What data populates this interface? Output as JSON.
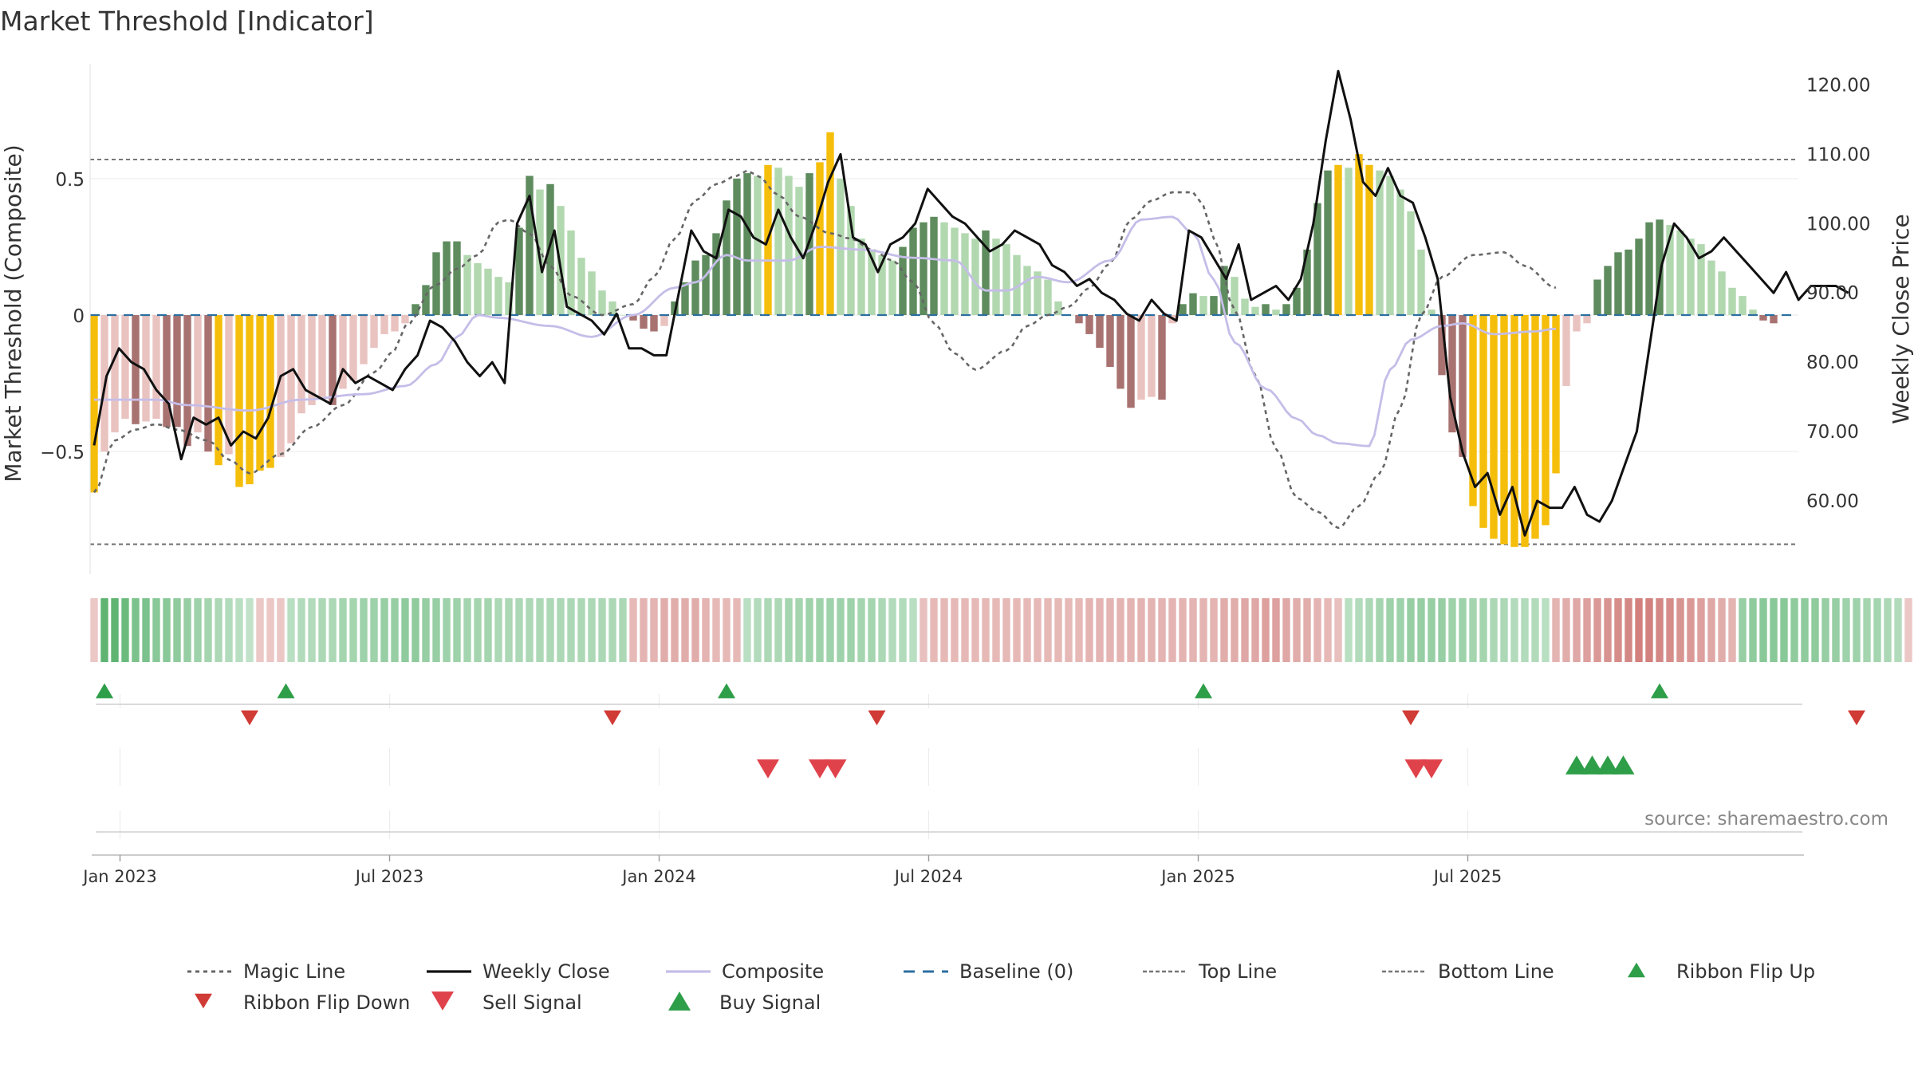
{
  "chart_data": {
    "type": "bar",
    "title": "Market Threshold [Indicator]",
    "source": "source: sharemaestro.com",
    "ylabel_left": "Market Threshold (Composite)",
    "ylabel_right": "Weekly Close Price",
    "ylim_left": [
      -0.95,
      0.95
    ],
    "ylim_right": [
      49.4,
      124.2
    ],
    "left_ticks": [
      {
        "value": 0.5,
        "label": "0.5"
      },
      {
        "value": 0,
        "label": "0"
      },
      {
        "value": -0.5,
        "label": "−0.5"
      }
    ],
    "right_ticks": [
      {
        "value": 60,
        "label": "60.00"
      },
      {
        "value": 70,
        "label": "70.00"
      },
      {
        "value": 80,
        "label": "80.00"
      },
      {
        "value": 90,
        "label": "90.00"
      },
      {
        "value": 100,
        "label": "100.00"
      },
      {
        "value": 110,
        "label": "110.00"
      },
      {
        "value": 120,
        "label": "120.00"
      }
    ],
    "x_ticks": [
      {
        "week": 2.5,
        "label": "Jan 2023"
      },
      {
        "week": 28.5,
        "label": "Jul 2023"
      },
      {
        "week": 54.5,
        "label": "Jan 2024"
      },
      {
        "week": 80.5,
        "label": "Jul 2024"
      },
      {
        "week": 106.5,
        "label": "Jan 2025"
      },
      {
        "week": 132.5,
        "label": "Jul 2025"
      }
    ],
    "grid": true,
    "threshold_top": 0.57,
    "threshold_bottom": -0.84,
    "weekly_close_key": [
      [
        0,
        68
      ],
      [
        1,
        78
      ],
      [
        2,
        82
      ],
      [
        3,
        80
      ],
      [
        4,
        79
      ],
      [
        5,
        76
      ],
      [
        6,
        74
      ],
      [
        7,
        66
      ],
      [
        8,
        72
      ],
      [
        9,
        71
      ],
      [
        10,
        72
      ],
      [
        11,
        68
      ],
      [
        12,
        70
      ],
      [
        13,
        69
      ],
      [
        14,
        72
      ],
      [
        15,
        78
      ],
      [
        16,
        79
      ],
      [
        17,
        76
      ],
      [
        18,
        75
      ],
      [
        19,
        74
      ],
      [
        20,
        79
      ],
      [
        21,
        77
      ],
      [
        22,
        78
      ],
      [
        23,
        77
      ],
      [
        24,
        76
      ],
      [
        25,
        79
      ],
      [
        26,
        81
      ],
      [
        27,
        86
      ],
      [
        28,
        85
      ],
      [
        29,
        83
      ],
      [
        30,
        80
      ],
      [
        31,
        78
      ],
      [
        32,
        80
      ],
      [
        33,
        77
      ],
      [
        34,
        100
      ],
      [
        35,
        104
      ],
      [
        36,
        93
      ],
      [
        37,
        99
      ],
      [
        38,
        88
      ],
      [
        39,
        87
      ],
      [
        40,
        86
      ],
      [
        41,
        84
      ],
      [
        42,
        87
      ],
      [
        43,
        82
      ],
      [
        44,
        82
      ],
      [
        45,
        81
      ],
      [
        46,
        81
      ],
      [
        47,
        90
      ],
      [
        48,
        99
      ],
      [
        49,
        96
      ],
      [
        50,
        95
      ],
      [
        51,
        102
      ],
      [
        52,
        101
      ],
      [
        53,
        98
      ],
      [
        54,
        97
      ],
      [
        55,
        102
      ],
      [
        56,
        98
      ],
      [
        57,
        95
      ],
      [
        58,
        100
      ],
      [
        59,
        106
      ],
      [
        60,
        110
      ],
      [
        61,
        98
      ],
      [
        62,
        97
      ],
      [
        63,
        93
      ],
      [
        64,
        97
      ],
      [
        65,
        98
      ],
      [
        66,
        100
      ],
      [
        67,
        105
      ],
      [
        68,
        103
      ],
      [
        69,
        101
      ],
      [
        70,
        100
      ],
      [
        71,
        98
      ],
      [
        72,
        96
      ],
      [
        73,
        97
      ],
      [
        74,
        99
      ],
      [
        75,
        98
      ],
      [
        76,
        97
      ],
      [
        77,
        94
      ],
      [
        78,
        93
      ],
      [
        79,
        91
      ],
      [
        80,
        92
      ],
      [
        81,
        90
      ],
      [
        82,
        89
      ],
      [
        83,
        87
      ],
      [
        84,
        86
      ],
      [
        85,
        89
      ],
      [
        86,
        87
      ],
      [
        87,
        86
      ],
      [
        88,
        99
      ],
      [
        89,
        98
      ],
      [
        90,
        95
      ],
      [
        91,
        92
      ],
      [
        92,
        97
      ],
      [
        93,
        89
      ],
      [
        94,
        90
      ],
      [
        95,
        91
      ],
      [
        96,
        89
      ],
      [
        97,
        92
      ],
      [
        98,
        100
      ],
      [
        99,
        112
      ],
      [
        100,
        122
      ],
      [
        101,
        115
      ],
      [
        102,
        106
      ],
      [
        103,
        104
      ],
      [
        104,
        108
      ],
      [
        105,
        104
      ],
      [
        106,
        103
      ],
      [
        107,
        98
      ],
      [
        108,
        92
      ],
      [
        109,
        75
      ],
      [
        110,
        67
      ],
      [
        111,
        62
      ],
      [
        112,
        64
      ],
      [
        113,
        58
      ],
      [
        114,
        62
      ],
      [
        115,
        55
      ],
      [
        116,
        60
      ],
      [
        117,
        59
      ],
      [
        118,
        59
      ],
      [
        119,
        62
      ],
      [
        120,
        58
      ],
      [
        121,
        57
      ],
      [
        122,
        60
      ],
      [
        123,
        65
      ],
      [
        124,
        70
      ],
      [
        125,
        82
      ],
      [
        126,
        94
      ],
      [
        127,
        100
      ],
      [
        128,
        98
      ],
      [
        129,
        95
      ],
      [
        130,
        96
      ],
      [
        131,
        98
      ],
      [
        132,
        96
      ],
      [
        133,
        94
      ],
      [
        134,
        92
      ],
      [
        135,
        90
      ],
      [
        136,
        93
      ],
      [
        137,
        89
      ],
      [
        138,
        91
      ],
      [
        139,
        91
      ],
      [
        140,
        91
      ],
      [
        141,
        90
      ]
    ],
    "composite_key": [
      [
        0,
        -0.31
      ],
      [
        6,
        -0.31
      ],
      [
        9,
        -0.33
      ],
      [
        15,
        -0.35
      ],
      [
        20,
        -0.31
      ],
      [
        26,
        -0.29
      ],
      [
        30,
        -0.26
      ],
      [
        33,
        -0.18
      ],
      [
        35,
        -0.08
      ],
      [
        37,
        0.0
      ],
      [
        39,
        -0.01
      ],
      [
        44,
        -0.04
      ],
      [
        48,
        -0.08
      ],
      [
        52,
        0.0
      ],
      [
        56,
        0.1
      ],
      [
        58,
        0.12
      ],
      [
        61,
        0.22
      ],
      [
        63,
        0.2
      ],
      [
        67,
        0.2
      ],
      [
        70,
        0.25
      ],
      [
        74,
        0.24
      ],
      [
        79,
        0.21
      ],
      [
        83,
        0.2
      ],
      [
        86,
        0.09
      ],
      [
        88,
        0.09
      ],
      [
        91,
        0.14
      ],
      [
        94,
        0.12
      ],
      [
        98,
        0.2
      ],
      [
        101,
        0.35
      ],
      [
        104,
        0.36
      ],
      [
        106,
        0.3
      ],
      [
        108,
        0.13
      ],
      [
        110,
        -0.1
      ],
      [
        113,
        -0.27
      ],
      [
        116,
        -0.38
      ],
      [
        118,
        -0.44
      ],
      [
        120,
        -0.47
      ],
      [
        123,
        -0.48
      ],
      [
        125,
        -0.2
      ],
      [
        127,
        -0.09
      ],
      [
        130,
        -0.04
      ],
      [
        132,
        -0.03
      ],
      [
        135,
        -0.07
      ],
      [
        139,
        -0.06
      ],
      [
        141,
        -0.05
      ]
    ],
    "magic_key": [
      [
        0,
        -0.65
      ],
      [
        2,
        -0.46
      ],
      [
        4,
        -0.42
      ],
      [
        6,
        -0.4
      ],
      [
        8,
        -0.42
      ],
      [
        11,
        -0.46
      ],
      [
        13,
        -0.53
      ],
      [
        15,
        -0.58
      ],
      [
        18,
        -0.51
      ],
      [
        21,
        -0.41
      ],
      [
        24,
        -0.33
      ],
      [
        27,
        -0.21
      ],
      [
        29,
        -0.13
      ],
      [
        30,
        -0.04
      ],
      [
        33,
        0.11
      ],
      [
        35,
        0.17
      ],
      [
        37,
        0.22
      ],
      [
        39,
        0.34
      ],
      [
        40,
        0.35
      ],
      [
        42,
        0.3
      ],
      [
        44,
        0.18
      ],
      [
        46,
        0.07
      ],
      [
        49,
        0.0
      ],
      [
        52,
        0.04
      ],
      [
        54,
        0.14
      ],
      [
        56,
        0.28
      ],
      [
        58,
        0.42
      ],
      [
        60,
        0.48
      ],
      [
        62,
        0.51
      ],
      [
        63,
        0.53
      ],
      [
        64,
        0.51
      ],
      [
        66,
        0.44
      ],
      [
        68,
        0.36
      ],
      [
        71,
        0.3
      ],
      [
        73,
        0.28
      ],
      [
        75,
        0.24
      ],
      [
        77,
        0.2
      ],
      [
        79,
        0.12
      ],
      [
        81,
        -0.03
      ],
      [
        83,
        -0.14
      ],
      [
        85,
        -0.2
      ],
      [
        88,
        -0.13
      ],
      [
        90,
        -0.04
      ],
      [
        92,
        0.0
      ],
      [
        94,
        0.03
      ],
      [
        96,
        0.1
      ],
      [
        98,
        0.19
      ],
      [
        100,
        0.35
      ],
      [
        102,
        0.42
      ],
      [
        104,
        0.45
      ],
      [
        106,
        0.45
      ],
      [
        107,
        0.4
      ],
      [
        108,
        0.28
      ],
      [
        110,
        0.02
      ],
      [
        112,
        -0.22
      ],
      [
        114,
        -0.49
      ],
      [
        116,
        -0.67
      ],
      [
        118,
        -0.72
      ],
      [
        120,
        -0.78
      ],
      [
        122,
        -0.7
      ],
      [
        124,
        -0.58
      ],
      [
        126,
        -0.34
      ],
      [
        128,
        0.0
      ],
      [
        130,
        0.14
      ],
      [
        133,
        0.22
      ],
      [
        136,
        0.23
      ],
      [
        138,
        0.18
      ],
      [
        141,
        0.1
      ]
    ],
    "histogram": [
      -0.65,
      -0.5,
      -0.43,
      -0.38,
      -0.4,
      -0.39,
      -0.38,
      -0.41,
      -0.41,
      -0.48,
      -0.43,
      -0.5,
      -0.55,
      -0.51,
      -0.63,
      -0.62,
      -0.57,
      -0.56,
      -0.52,
      -0.47,
      -0.36,
      -0.33,
      -0.3,
      -0.33,
      -0.27,
      -0.24,
      -0.18,
      -0.12,
      -0.07,
      -0.06,
      -0.03,
      0.04,
      0.11,
      0.23,
      0.27,
      0.27,
      0.22,
      0.19,
      0.17,
      0.14,
      0.12,
      0.32,
      0.51,
      0.46,
      0.48,
      0.4,
      0.31,
      0.21,
      0.16,
      0.09,
      0.05,
      0.0,
      -0.02,
      -0.05,
      -0.06,
      -0.04,
      0.05,
      0.12,
      0.2,
      0.22,
      0.3,
      0.42,
      0.5,
      0.52,
      0.51,
      0.55,
      0.54,
      0.51,
      0.47,
      0.52,
      0.56,
      0.67,
      0.5,
      0.4,
      0.28,
      0.24,
      0.22,
      0.2,
      0.25,
      0.32,
      0.34,
      0.36,
      0.34,
      0.32,
      0.3,
      0.28,
      0.31,
      0.28,
      0.26,
      0.22,
      0.18,
      0.16,
      0.13,
      0.05,
      0.0,
      -0.03,
      -0.07,
      -0.12,
      -0.19,
      -0.27,
      -0.34,
      -0.31,
      -0.3,
      -0.31,
      -0.03,
      0.04,
      0.08,
      0.07,
      0.07,
      0.18,
      0.14,
      0.06,
      0.03,
      0.04,
      0.02,
      0.04,
      0.1,
      0.24,
      0.41,
      0.53,
      0.55,
      0.54,
      0.59,
      0.55,
      0.53,
      0.51,
      0.46,
      0.38,
      0.24,
      0.02,
      -0.22,
      -0.43,
      -0.52,
      -0.7,
      -0.78,
      -0.82,
      -0.84,
      -0.85,
      -0.85,
      -0.82,
      -0.77,
      -0.58,
      -0.26,
      -0.06,
      -0.03,
      0.13,
      0.18,
      0.23,
      0.24,
      0.28,
      0.34,
      0.35,
      0.33,
      0.31,
      0.28,
      0.26,
      0.2,
      0.16,
      0.1,
      0.07,
      0.02,
      -0.02,
      -0.03
    ],
    "ribbon": [
      -0.2,
      0.9,
      0.9,
      0.8,
      0.7,
      0.7,
      0.6,
      0.6,
      0.55,
      0.5,
      0.45,
      0.4,
      0.35,
      0.3,
      0.25,
      0.2,
      -0.2,
      -0.2,
      -0.2,
      0.25,
      0.3,
      0.3,
      0.35,
      0.35,
      0.4,
      0.4,
      0.45,
      0.45,
      0.5,
      0.5,
      0.55,
      0.55,
      0.5,
      0.5,
      0.45,
      0.45,
      0.4,
      0.4,
      0.4,
      0.35,
      0.35,
      0.35,
      0.35,
      0.35,
      0.35,
      0.35,
      0.35,
      0.35,
      0.35,
      0.35,
      0.35,
      0.35,
      -0.3,
      -0.35,
      -0.35,
      -0.4,
      -0.4,
      -0.4,
      -0.4,
      -0.35,
      -0.3,
      -0.3,
      -0.3,
      0.25,
      0.3,
      0.35,
      0.35,
      0.4,
      0.4,
      0.45,
      0.45,
      0.45,
      0.45,
      0.45,
      0.4,
      0.4,
      0.35,
      0.3,
      0.3,
      0.25,
      -0.25,
      -0.3,
      -0.3,
      -0.3,
      -0.3,
      -0.3,
      -0.3,
      -0.3,
      -0.3,
      -0.3,
      -0.3,
      -0.3,
      -0.3,
      -0.3,
      -0.3,
      -0.3,
      -0.35,
      -0.35,
      -0.35,
      -0.35,
      -0.35,
      -0.35,
      -0.35,
      -0.35,
      -0.35,
      -0.35,
      -0.35,
      -0.35,
      -0.35,
      -0.4,
      -0.4,
      -0.45,
      -0.45,
      -0.5,
      -0.5,
      -0.45,
      -0.4,
      -0.4,
      -0.35,
      -0.3,
      -0.25,
      0.25,
      0.3,
      0.35,
      0.4,
      0.45,
      0.45,
      0.5,
      0.5,
      0.5,
      0.5,
      0.45,
      0.45,
      0.4,
      0.4,
      0.35,
      0.35,
      0.3,
      0.3,
      0.3,
      0.25,
      -0.35,
      -0.4,
      -0.45,
      -0.5,
      -0.55,
      -0.6,
      -0.65,
      -0.7,
      -0.75,
      -0.75,
      -0.7,
      -0.65,
      -0.6,
      -0.55,
      -0.5,
      -0.45,
      -0.4,
      -0.35,
      0.5,
      0.55,
      0.6,
      0.6,
      0.6,
      0.55,
      0.55,
      0.55,
      0.5,
      0.5,
      0.45,
      0.45,
      0.4,
      0.4,
      0.35,
      0.3,
      -0.2
    ],
    "ribbon_flip_up_weeks": [
      1.0,
      18.5,
      61.0,
      107.0,
      151.0
    ],
    "ribbon_flip_down_weeks": [
      15.0,
      50.0,
      75.5,
      127.0,
      170.0
    ],
    "sell_signal_weeks": [
      65.0,
      70.0,
      71.5,
      127.5,
      129.0
    ],
    "buy_signal_weeks": [
      143.0,
      144.5,
      146.0,
      147.5
    ],
    "legend": [
      {
        "key": "magic",
        "label": "Magic Line"
      },
      {
        "key": "close",
        "label": "Weekly Close"
      },
      {
        "key": "composite",
        "label": "Composite"
      },
      {
        "key": "baseline",
        "label": "Baseline (0)"
      },
      {
        "key": "top",
        "label": "Top Line"
      },
      {
        "key": "bottom",
        "label": "Bottom Line"
      },
      {
        "key": "flip_up",
        "label": "Ribbon Flip Up"
      },
      {
        "key": "flip_down",
        "label": "Ribbon Flip Down"
      },
      {
        "key": "sell",
        "label": "Sell Signal"
      },
      {
        "key": "buy",
        "label": "Buy Signal"
      }
    ],
    "legend_placement": "bottom",
    "colors": {
      "close": "#111111",
      "composite": "#c5bde8",
      "magic": "#666666",
      "baseline": "#2c6fa0",
      "threshold": "#777777",
      "pos_dark": "#5e8c5e",
      "pos_light": "#b2d8b0",
      "neg_dark": "#a87270",
      "neg_light": "#e9c3c0",
      "extreme": "#f5be0b",
      "flip_up": "#2e9e48",
      "flip_down": "#d03b35",
      "sell": "#e0424b",
      "buy": "#2e9e48",
      "ribbon_pos": "#3ea556",
      "ribbon_neg": "#c0504c"
    }
  }
}
